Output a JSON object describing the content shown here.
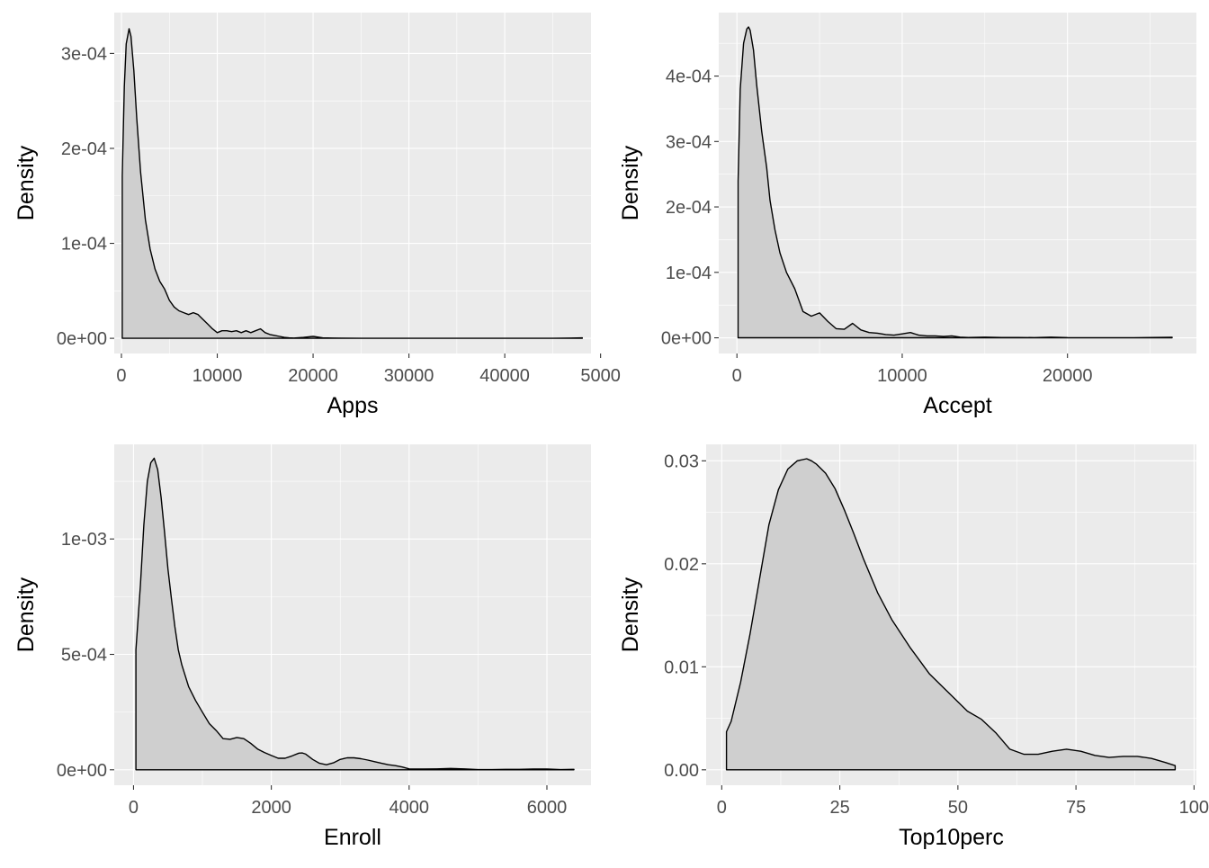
{
  "chart_data": [
    {
      "type": "area",
      "xlabel": "Apps",
      "ylabel": "Density",
      "xlim": [
        -750,
        49000
      ],
      "ylim": [
        -1.6e-05,
        0.000343
      ],
      "xticks": [
        0,
        10000,
        20000,
        30000,
        40000
      ],
      "xtick_labels": [
        "0",
        "10000",
        "20000",
        "30000",
        "40000"
      ],
      "yticks": [
        0,
        0.0001,
        0.0002,
        0.0003
      ],
      "ytick_labels": [
        "0e+00",
        "1e-04",
        "2e-04",
        "3e-04"
      ],
      "x_tick_label_clipped": "5000",
      "grid": true,
      "x": [
        81,
        300,
        500,
        800,
        1000,
        1300,
        1600,
        2000,
        2500,
        3000,
        3500,
        4000,
        4500,
        5000,
        5500,
        6000,
        6500,
        7000,
        7500,
        8000,
        8500,
        9000,
        9500,
        10000,
        10500,
        11000,
        11500,
        12000,
        12500,
        13000,
        13500,
        14000,
        14500,
        15000,
        15500,
        16000,
        16500,
        17000,
        17500,
        18000,
        19000,
        20000,
        21000,
        22000,
        23000,
        25000,
        30000,
        35000,
        40000,
        45000,
        48094
      ],
      "y": [
        0.000171,
        0.000265,
        0.00031,
        0.000326,
        0.000318,
        0.000282,
        0.000232,
        0.000175,
        0.000125,
        9.4e-05,
        7.3e-05,
        6e-05,
        5.2e-05,
        4e-05,
        3.3e-05,
        2.9e-05,
        2.7e-05,
        2.5e-05,
        2.7e-05,
        2.5e-05,
        2e-05,
        1.5e-05,
        1e-05,
        6e-06,
        8e-06,
        8e-06,
        7e-06,
        8e-06,
        6e-06,
        8e-06,
        6e-06,
        8e-06,
        1e-05,
        6e-06,
        4e-06,
        3e-06,
        2e-06,
        1e-06,
        5e-07,
        3e-07,
        1e-06,
        2e-06,
        5e-07,
        3e-07,
        1e-07,
        0,
        0,
        0,
        0,
        0,
        5e-07
      ]
    },
    {
      "type": "area",
      "xlabel": "Accept",
      "ylabel": "Density",
      "xlim": [
        -1100,
        27800
      ],
      "ylim": [
        -2.4e-05,
        0.000497
      ],
      "xticks": [
        0,
        10000,
        20000
      ],
      "xtick_labels": [
        "0",
        "10000",
        "20000"
      ],
      "yticks": [
        0,
        0.0001,
        0.0002,
        0.0003,
        0.0004
      ],
      "ytick_labels": [
        "0e+00",
        "1e-04",
        "2e-04",
        "3e-04",
        "4e-04"
      ],
      "grid": true,
      "x": [
        72,
        200,
        400,
        600,
        700,
        800,
        1000,
        1200,
        1500,
        1800,
        2000,
        2300,
        2600,
        3000,
        3500,
        4000,
        4500,
        5000,
        5500,
        6000,
        6500,
        7000,
        7500,
        8000,
        8500,
        9000,
        9500,
        10000,
        10500,
        11000,
        11500,
        12000,
        12500,
        13000,
        13500,
        14000,
        15000,
        16000,
        17000,
        18000,
        19000,
        20000,
        22000,
        24000,
        26330
      ],
      "y": [
        0.00024,
        0.00038,
        0.00045,
        0.000472,
        0.000475,
        0.00047,
        0.00044,
        0.000385,
        0.000315,
        0.00026,
        0.00021,
        0.000165,
        0.00013,
        0.0001,
        7.5e-05,
        4e-05,
        3.3e-05,
        3.8e-05,
        2.5e-05,
        1.4e-05,
        1.3e-05,
        2.2e-05,
        1.2e-05,
        8e-06,
        7e-06,
        5e-06,
        4e-06,
        6e-06,
        8e-06,
        4e-06,
        3e-06,
        3e-06,
        2e-06,
        3e-06,
        1e-06,
        5e-07,
        1e-06,
        5e-07,
        5e-07,
        3e-07,
        1e-06,
        3e-07,
        2e-07,
        1e-07,
        8e-07
      ]
    },
    {
      "type": "area",
      "xlabel": "Enroll",
      "ylabel": "Density",
      "xlim": [
        -280,
        6640
      ],
      "ylim": [
        -6.7e-05,
        0.00141
      ],
      "xticks": [
        0,
        2000,
        4000,
        6000
      ],
      "xtick_labels": [
        "0",
        "2000",
        "4000",
        "6000"
      ],
      "yticks": [
        0,
        0.0005,
        0.001
      ],
      "ytick_labels": [
        "0e+00",
        "5e-04",
        "1e-03"
      ],
      "grid": true,
      "x": [
        35,
        100,
        150,
        200,
        250,
        300,
        350,
        400,
        450,
        500,
        550,
        600,
        650,
        700,
        800,
        900,
        1000,
        1100,
        1200,
        1300,
        1400,
        1500,
        1600,
        1700,
        1800,
        1900,
        2000,
        2100,
        2200,
        2300,
        2400,
        2450,
        2500,
        2600,
        2700,
        2800,
        2900,
        3000,
        3100,
        3200,
        3300,
        3400,
        3500,
        3600,
        3700,
        3800,
        3900,
        4000,
        4200,
        4400,
        4600,
        4800,
        5000,
        5200,
        5400,
        5600,
        5800,
        6000,
        6200,
        6392
      ],
      "y": [
        0.00052,
        0.0008,
        0.00106,
        0.00125,
        0.00133,
        0.00135,
        0.0013,
        0.00118,
        0.00103,
        0.00087,
        0.00074,
        0.00062,
        0.00052,
        0.000455,
        0.00036,
        0.0003,
        0.00025,
        0.0002,
        0.00017,
        0.000135,
        0.000132,
        0.00014,
        0.000135,
        0.000115,
        9e-05,
        7.5e-05,
        6.2e-05,
        5e-05,
        5e-05,
        6e-05,
        7.2e-05,
        7.3e-05,
        6.8e-05,
        4.5e-05,
        2.8e-05,
        2.2e-05,
        3e-05,
        4.5e-05,
        5.2e-05,
        5.2e-05,
        4.8e-05,
        4.2e-05,
        3.5e-05,
        2.8e-05,
        2.2e-05,
        1.8e-05,
        1.2e-05,
        4e-06,
        3e-06,
        4e-06,
        6e-06,
        4e-06,
        1e-06,
        1e-06,
        2e-06,
        2e-06,
        3e-06,
        3e-06,
        1e-06,
        2e-06
      ]
    },
    {
      "type": "area",
      "xlabel": "Top10perc",
      "ylabel": "Density",
      "xlim": [
        -3.3,
        100.5
      ],
      "ylim": [
        -0.0015,
        0.0316
      ],
      "xticks": [
        0,
        25,
        50,
        75,
        100
      ],
      "xtick_labels": [
        "0",
        "25",
        "50",
        "75",
        "100"
      ],
      "yticks": [
        0,
        0.01,
        0.02,
        0.03
      ],
      "ytick_labels": [
        "0.00",
        "0.01",
        "0.02",
        "0.03"
      ],
      "grid": true,
      "x": [
        1,
        2,
        4,
        6,
        8,
        10,
        12,
        14,
        16,
        18,
        19,
        20,
        22,
        24,
        26,
        28,
        30,
        33,
        36,
        40,
        44,
        48,
        52,
        55,
        58,
        61,
        64,
        67,
        70,
        73,
        76,
        79,
        82,
        85,
        88,
        91,
        94,
        96
      ],
      "y": [
        0.0037,
        0.0047,
        0.0085,
        0.0132,
        0.0185,
        0.0238,
        0.0272,
        0.0292,
        0.03,
        0.0302,
        0.03,
        0.0297,
        0.0288,
        0.0273,
        0.0252,
        0.0229,
        0.0205,
        0.0172,
        0.0146,
        0.0118,
        0.0093,
        0.0075,
        0.0057,
        0.0049,
        0.0036,
        0.002,
        0.0015,
        0.0015,
        0.0018,
        0.002,
        0.0018,
        0.0014,
        0.0012,
        0.0013,
        0.0013,
        0.0011,
        0.0007,
        0.0004
      ]
    }
  ]
}
